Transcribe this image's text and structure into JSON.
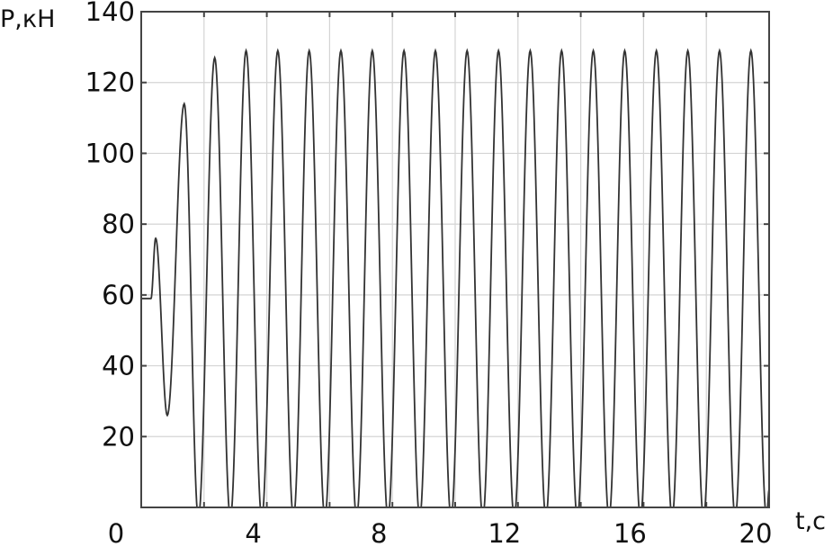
{
  "chart_data": {
    "type": "line",
    "title": "",
    "xlabel": "t,c",
    "ylabel": "P,кН",
    "xlim": [
      0,
      20
    ],
    "ylim": [
      0,
      140
    ],
    "x_ticks": [
      0,
      4,
      8,
      12,
      16,
      20
    ],
    "y_ticks": [
      20,
      40,
      60,
      80,
      100,
      120,
      140
    ],
    "x_grid_step": 2,
    "y_grid_step": 20,
    "grid": true,
    "line_color": "#333333",
    "grid_color": "#d4d4d4",
    "extrema": [
      [
        0,
        59
      ],
      [
        0.31,
        59
      ],
      [
        0.46,
        76
      ],
      [
        0.83,
        26
      ],
      [
        1.37,
        114
      ],
      [
        1.82,
        -3
      ],
      [
        2.34,
        127
      ],
      [
        2.84,
        -3
      ],
      [
        3.34,
        129
      ],
      [
        3.84,
        -3
      ],
      [
        4.35,
        129
      ],
      [
        4.85,
        -3
      ],
      [
        5.35,
        129
      ],
      [
        5.85,
        -3
      ],
      [
        6.36,
        129
      ],
      [
        6.86,
        -3
      ],
      [
        7.36,
        129
      ],
      [
        7.86,
        -3
      ],
      [
        8.37,
        129
      ],
      [
        8.87,
        -3
      ],
      [
        9.37,
        129
      ],
      [
        9.87,
        -3
      ],
      [
        10.38,
        129
      ],
      [
        10.88,
        -3
      ],
      [
        11.38,
        129
      ],
      [
        11.88,
        -3
      ],
      [
        12.39,
        129
      ],
      [
        12.89,
        -3
      ],
      [
        13.39,
        129
      ],
      [
        13.89,
        -3
      ],
      [
        14.4,
        129
      ],
      [
        14.9,
        -3
      ],
      [
        15.4,
        129
      ],
      [
        15.9,
        -3
      ],
      [
        16.41,
        129
      ],
      [
        16.91,
        -3
      ],
      [
        17.41,
        129
      ],
      [
        17.91,
        -3
      ],
      [
        18.42,
        129
      ],
      [
        18.92,
        -3
      ],
      [
        19.42,
        129
      ],
      [
        19.92,
        -3
      ],
      [
        20,
        5
      ]
    ]
  }
}
